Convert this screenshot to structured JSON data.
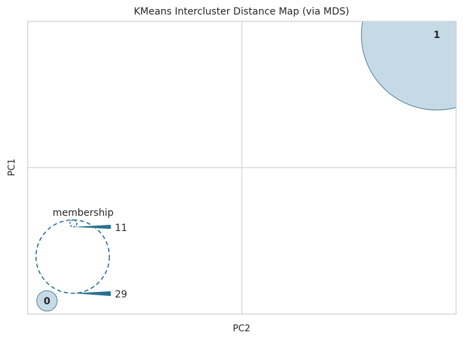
{
  "chart_data": {
    "type": "scatter",
    "title": "KMeans Intercluster Distance Map (via MDS)",
    "xlabel": "PC2",
    "ylabel": "PC1",
    "xlim": [
      -1,
      1
    ],
    "ylim": [
      -1,
      1
    ],
    "grid": true,
    "clusters": [
      {
        "label": "0",
        "x": -0.91,
        "y": -0.91,
        "size": 11
      },
      {
        "label": "1",
        "x": 0.91,
        "y": 0.91,
        "size": 29
      }
    ],
    "legend": {
      "title": "membership",
      "placement": "bottom-left",
      "sizes": [
        "11",
        "29"
      ]
    },
    "colors": {
      "cluster_fill": "#aecadb",
      "cluster_edge": "#4b7f9e",
      "legend": "#2a6f8f",
      "grid": "#cccccc",
      "frame": "#cccccc"
    }
  }
}
